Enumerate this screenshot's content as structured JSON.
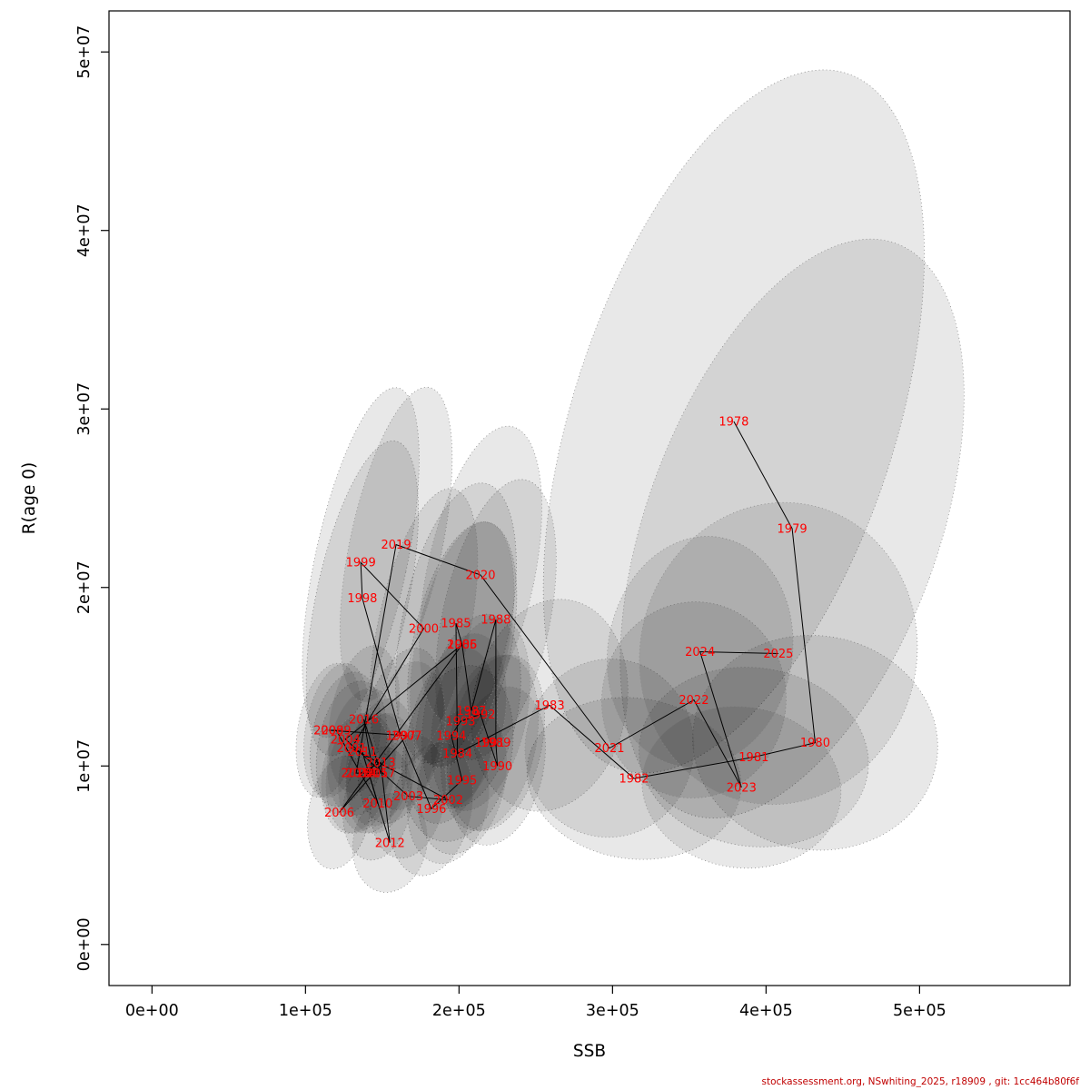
{
  "footer": {
    "text": "stockassessment.org, NSwhiting_2025, r18909 , git: 1cc464b80f6f",
    "color": "#c00000"
  },
  "chart_data": {
    "type": "scatter",
    "title": "",
    "xlabel": "SSB",
    "ylabel": "R(age 0)",
    "xlim": [
      -28000,
      598000
    ],
    "ylim": [
      -2300000,
      52300000
    ],
    "xticks": [
      0,
      100000,
      200000,
      300000,
      400000,
      500000
    ],
    "xtick_labels": [
      "0e+00",
      "1e+05",
      "2e+05",
      "3e+05",
      "4e+05",
      "5e+05"
    ],
    "yticks": [
      0,
      10000000,
      20000000,
      30000000,
      40000000,
      50000000
    ],
    "ytick_labels": [
      "0e+00",
      "1e+07",
      "2e+07",
      "3e+07",
      "4e+07",
      "5e+07"
    ],
    "grid": false,
    "legend": "none",
    "label_color": "#ff0000",
    "line_color": "#000000",
    "ellipse_fill": "#000000",
    "ellipse_fill_opacity": 0.09,
    "ellipse_stroke": "#8a8a8a",
    "points": [
      {
        "year": 1978,
        "ssb": 379000,
        "rec": 29300000,
        "rx": 105000,
        "ry": 20500000,
        "rot": 18
      },
      {
        "year": 1979,
        "ssb": 417000,
        "rec": 23300000,
        "rx": 95000,
        "ry": 17000000,
        "rot": 20
      },
      {
        "year": 1980,
        "ssb": 432000,
        "rec": 11300000,
        "rx": 80000,
        "ry": 6000000,
        "rot": 8
      },
      {
        "year": 1981,
        "ssb": 392000,
        "rec": 10500000,
        "rx": 75000,
        "ry": 5000000,
        "rot": 8
      },
      {
        "year": 1982,
        "ssb": 314000,
        "rec": 9300000,
        "rx": 70000,
        "ry": 4500000,
        "rot": 8
      },
      {
        "year": 1983,
        "ssb": 259000,
        "rec": 13400000,
        "rx": 50000,
        "ry": 6000000,
        "rot": 12
      },
      {
        "year": 1984,
        "ssb": 199000,
        "rec": 10700000,
        "rx": 35000,
        "ry": 5000000,
        "rot": 12
      },
      {
        "year": 1985,
        "ssb": 198000,
        "rec": 18000000,
        "rx": 35000,
        "ry": 8000000,
        "rot": 12
      },
      {
        "year": 1986,
        "ssb": 202000,
        "rec": 16800000,
        "rx": 32000,
        "ry": 7000000,
        "rot": 12
      },
      {
        "year": 1987,
        "ssb": 208000,
        "rec": 13100000,
        "rx": 30000,
        "ry": 5500000,
        "rot": 12
      },
      {
        "year": 1988,
        "ssb": 224000,
        "rec": 18200000,
        "rx": 35000,
        "ry": 8000000,
        "rot": 12
      },
      {
        "year": 1989,
        "ssb": 224000,
        "rec": 11300000,
        "rx": 30000,
        "ry": 5000000,
        "rot": 12
      },
      {
        "year": 1990,
        "ssb": 225000,
        "rec": 10000000,
        "rx": 30000,
        "ry": 4500000,
        "rot": 12
      },
      {
        "year": 1991,
        "ssb": 220000,
        "rec": 11300000,
        "rx": 30000,
        "ry": 5000000,
        "rot": 12
      },
      {
        "year": 1992,
        "ssb": 214000,
        "rec": 12900000,
        "rx": 30000,
        "ry": 5500000,
        "rot": 12
      },
      {
        "year": 1993,
        "ssb": 201000,
        "rec": 12500000,
        "rx": 28000,
        "ry": 5000000,
        "rot": 12
      },
      {
        "year": 1994,
        "ssb": 195000,
        "rec": 11700000,
        "rx": 28000,
        "ry": 5000000,
        "rot": 12
      },
      {
        "year": 1995,
        "ssb": 202000,
        "rec": 9200000,
        "rx": 28000,
        "ry": 4200000,
        "rot": 12
      },
      {
        "year": 1996,
        "ssb": 182000,
        "rec": 7600000,
        "rx": 26000,
        "ry": 3800000,
        "rot": 12
      },
      {
        "year": 1997,
        "ssb": 162000,
        "rec": 11700000,
        "rx": 26000,
        "ry": 5000000,
        "rot": 12
      },
      {
        "year": 1998,
        "ssb": 137000,
        "rec": 19400000,
        "rx": 30000,
        "ry": 9000000,
        "rot": 12
      },
      {
        "year": 1999,
        "ssb": 136000,
        "rec": 21400000,
        "rx": 30000,
        "ry": 10000000,
        "rot": 12
      },
      {
        "year": 2000,
        "ssb": 177000,
        "rec": 17700000,
        "rx": 30000,
        "ry": 8000000,
        "rot": 12
      },
      {
        "year": 2001,
        "ssb": 130000,
        "rec": 11000000,
        "rx": 22000,
        "ry": 3800000,
        "rot": 10
      },
      {
        "year": 2002,
        "ssb": 193000,
        "rec": 8100000,
        "rx": 26000,
        "ry": 3600000,
        "rot": 10
      },
      {
        "year": 2003,
        "ssb": 167000,
        "rec": 8300000,
        "rx": 24000,
        "ry": 3500000,
        "rot": 10
      },
      {
        "year": 2004,
        "ssb": 126000,
        "rec": 11500000,
        "rx": 22000,
        "ry": 3800000,
        "rot": 10
      },
      {
        "year": 2005,
        "ssb": 202000,
        "rec": 16800000,
        "rx": 30000,
        "ry": 7000000,
        "rot": 12
      },
      {
        "year": 2006,
        "ssb": 122000,
        "rec": 7400000,
        "rx": 20000,
        "ry": 3200000,
        "rot": 10
      },
      {
        "year": 2007,
        "ssb": 166000,
        "rec": 11700000,
        "rx": 24000,
        "ry": 4200000,
        "rot": 10
      },
      {
        "year": 2008,
        "ssb": 115000,
        "rec": 12000000,
        "rx": 20000,
        "ry": 3800000,
        "rot": 10
      },
      {
        "year": 2009,
        "ssb": 120000,
        "rec": 12000000,
        "rx": 20000,
        "ry": 3800000,
        "rot": 10
      },
      {
        "year": 2010,
        "ssb": 147000,
        "rec": 7900000,
        "rx": 22000,
        "ry": 3200000,
        "rot": 10
      },
      {
        "year": 2011,
        "ssb": 137000,
        "rec": 10800000,
        "rx": 22000,
        "ry": 3600000,
        "rot": 10
      },
      {
        "year": 2012,
        "ssb": 155000,
        "rec": 5700000,
        "rx": 24000,
        "ry": 2800000,
        "rot": 10
      },
      {
        "year": 2013,
        "ssb": 149000,
        "rec": 10200000,
        "rx": 22000,
        "ry": 3600000,
        "rot": 10
      },
      {
        "year": 2014,
        "ssb": 136000,
        "rec": 9600000,
        "rx": 22000,
        "ry": 3400000,
        "rot": 10
      },
      {
        "year": 2015,
        "ssb": 144000,
        "rec": 9600000,
        "rx": 22000,
        "ry": 3400000,
        "rot": 10
      },
      {
        "year": 2016,
        "ssb": 138000,
        "rec": 12600000,
        "rx": 22000,
        "ry": 4200000,
        "rot": 10
      },
      {
        "year": 2017,
        "ssb": 149000,
        "rec": 9600000,
        "rx": 22000,
        "ry": 3400000,
        "rot": 10
      },
      {
        "year": 2018,
        "ssb": 133000,
        "rec": 9600000,
        "rx": 22000,
        "ry": 3400000,
        "rot": 10
      },
      {
        "year": 2019,
        "ssb": 159000,
        "rec": 22400000,
        "rx": 30000,
        "ry": 9000000,
        "rot": 12
      },
      {
        "year": 2020,
        "ssb": 214000,
        "rec": 20700000,
        "rx": 35000,
        "ry": 8500000,
        "rot": 12
      },
      {
        "year": 2021,
        "ssb": 298000,
        "rec": 11000000,
        "rx": 55000,
        "ry": 5000000,
        "rot": 8
      },
      {
        "year": 2022,
        "ssb": 353000,
        "rec": 13700000,
        "rx": 60000,
        "ry": 5500000,
        "rot": 8
      },
      {
        "year": 2023,
        "ssb": 384000,
        "rec": 8800000,
        "rx": 65000,
        "ry": 4500000,
        "rot": 8
      },
      {
        "year": 2024,
        "ssb": 357000,
        "rec": 16400000,
        "rx": 60000,
        "ry": 6500000,
        "rot": 10
      },
      {
        "year": 2025,
        "ssb": 408000,
        "rec": 16300000,
        "rx": 90000,
        "ry": 8500000,
        "rot": 14
      }
    ]
  }
}
